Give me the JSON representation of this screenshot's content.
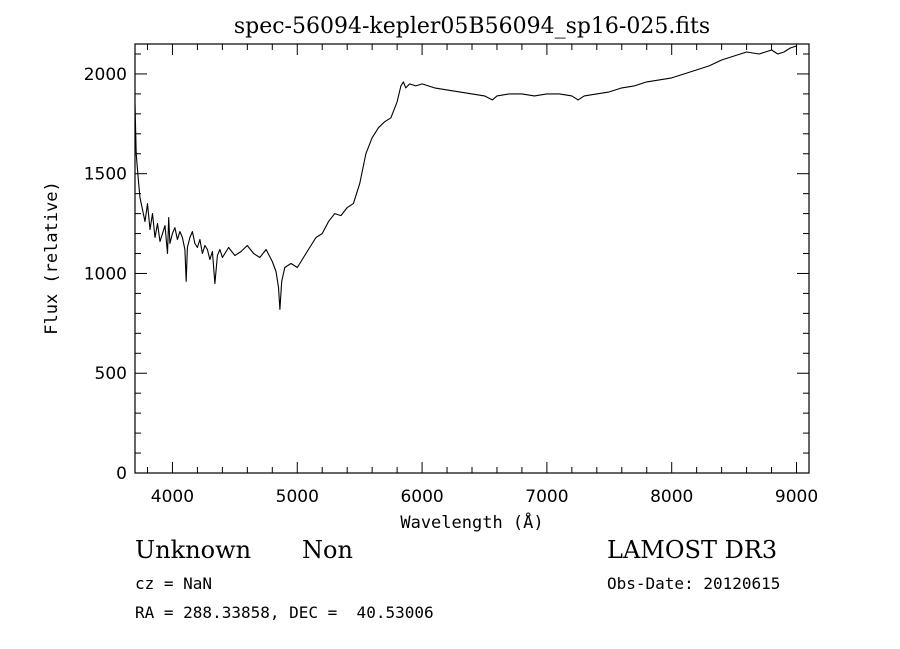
{
  "chart_data": {
    "type": "line",
    "title": "spec-56094-kepler05B56094_sp16-025.fits",
    "xlabel": "Wavelength (Å)",
    "ylabel": "Flux (relative)",
    "xlim": [
      3700,
      9100
    ],
    "ylim": [
      0,
      2150
    ],
    "x_ticks": [
      4000,
      5000,
      6000,
      7000,
      8000,
      9000
    ],
    "y_ticks": [
      0,
      500,
      1000,
      1500,
      2000
    ],
    "grid": false,
    "series": [
      {
        "x": [
          3700,
          3710,
          3720,
          3730,
          3740,
          3760,
          3780,
          3800,
          3820,
          3840,
          3860,
          3880,
          3900,
          3920,
          3940,
          3960,
          3970,
          3980,
          4000,
          4020,
          4040,
          4060,
          4080,
          4100,
          4110,
          4120,
          4140,
          4160,
          4180,
          4200,
          4220,
          4240,
          4260,
          4280,
          4300,
          4320,
          4340,
          4360,
          4380,
          4400,
          4450,
          4500,
          4550,
          4600,
          4650,
          4700,
          4750,
          4800,
          4830,
          4850,
          4861,
          4875,
          4900,
          4950,
          5000,
          5050,
          5100,
          5150,
          5200,
          5250,
          5300,
          5350,
          5400,
          5450,
          5500,
          5550,
          5600,
          5650,
          5700,
          5750,
          5800,
          5830,
          5850,
          5870,
          5900,
          5950,
          6000,
          6100,
          6200,
          6300,
          6400,
          6500,
          6563,
          6600,
          6700,
          6800,
          6900,
          7000,
          7100,
          7200,
          7250,
          7300,
          7400,
          7500,
          7600,
          7700,
          7800,
          7900,
          8000,
          8100,
          8200,
          8300,
          8400,
          8500,
          8600,
          8700,
          8800,
          8850,
          8900,
          8950,
          9000
        ],
        "y": [
          1850,
          1600,
          1520,
          1450,
          1380,
          1320,
          1260,
          1350,
          1220,
          1300,
          1180,
          1250,
          1160,
          1200,
          1240,
          1100,
          1280,
          1150,
          1200,
          1230,
          1170,
          1210,
          1180,
          1120,
          960,
          1130,
          1180,
          1210,
          1150,
          1130,
          1170,
          1100,
          1140,
          1120,
          1070,
          1110,
          950,
          1090,
          1120,
          1080,
          1130,
          1090,
          1110,
          1140,
          1100,
          1080,
          1120,
          1060,
          1010,
          930,
          820,
          960,
          1030,
          1050,
          1030,
          1080,
          1130,
          1180,
          1200,
          1260,
          1300,
          1290,
          1330,
          1350,
          1450,
          1600,
          1680,
          1730,
          1760,
          1780,
          1860,
          1940,
          1960,
          1930,
          1950,
          1940,
          1950,
          1930,
          1920,
          1910,
          1900,
          1890,
          1870,
          1890,
          1900,
          1900,
          1890,
          1900,
          1900,
          1890,
          1870,
          1890,
          1900,
          1910,
          1930,
          1940,
          1960,
          1970,
          1980,
          2000,
          2020,
          2040,
          2070,
          2090,
          2110,
          2100,
          2120,
          2100,
          2110,
          2130,
          2140
        ]
      }
    ]
  },
  "info": {
    "class_name": "Unknown",
    "subclass": "Non",
    "survey": "LAMOST DR3",
    "cz": "cz = NaN",
    "obs_date": "Obs-Date: 20120615",
    "coords": "RA = 288.33858, DEC =  40.53006"
  }
}
